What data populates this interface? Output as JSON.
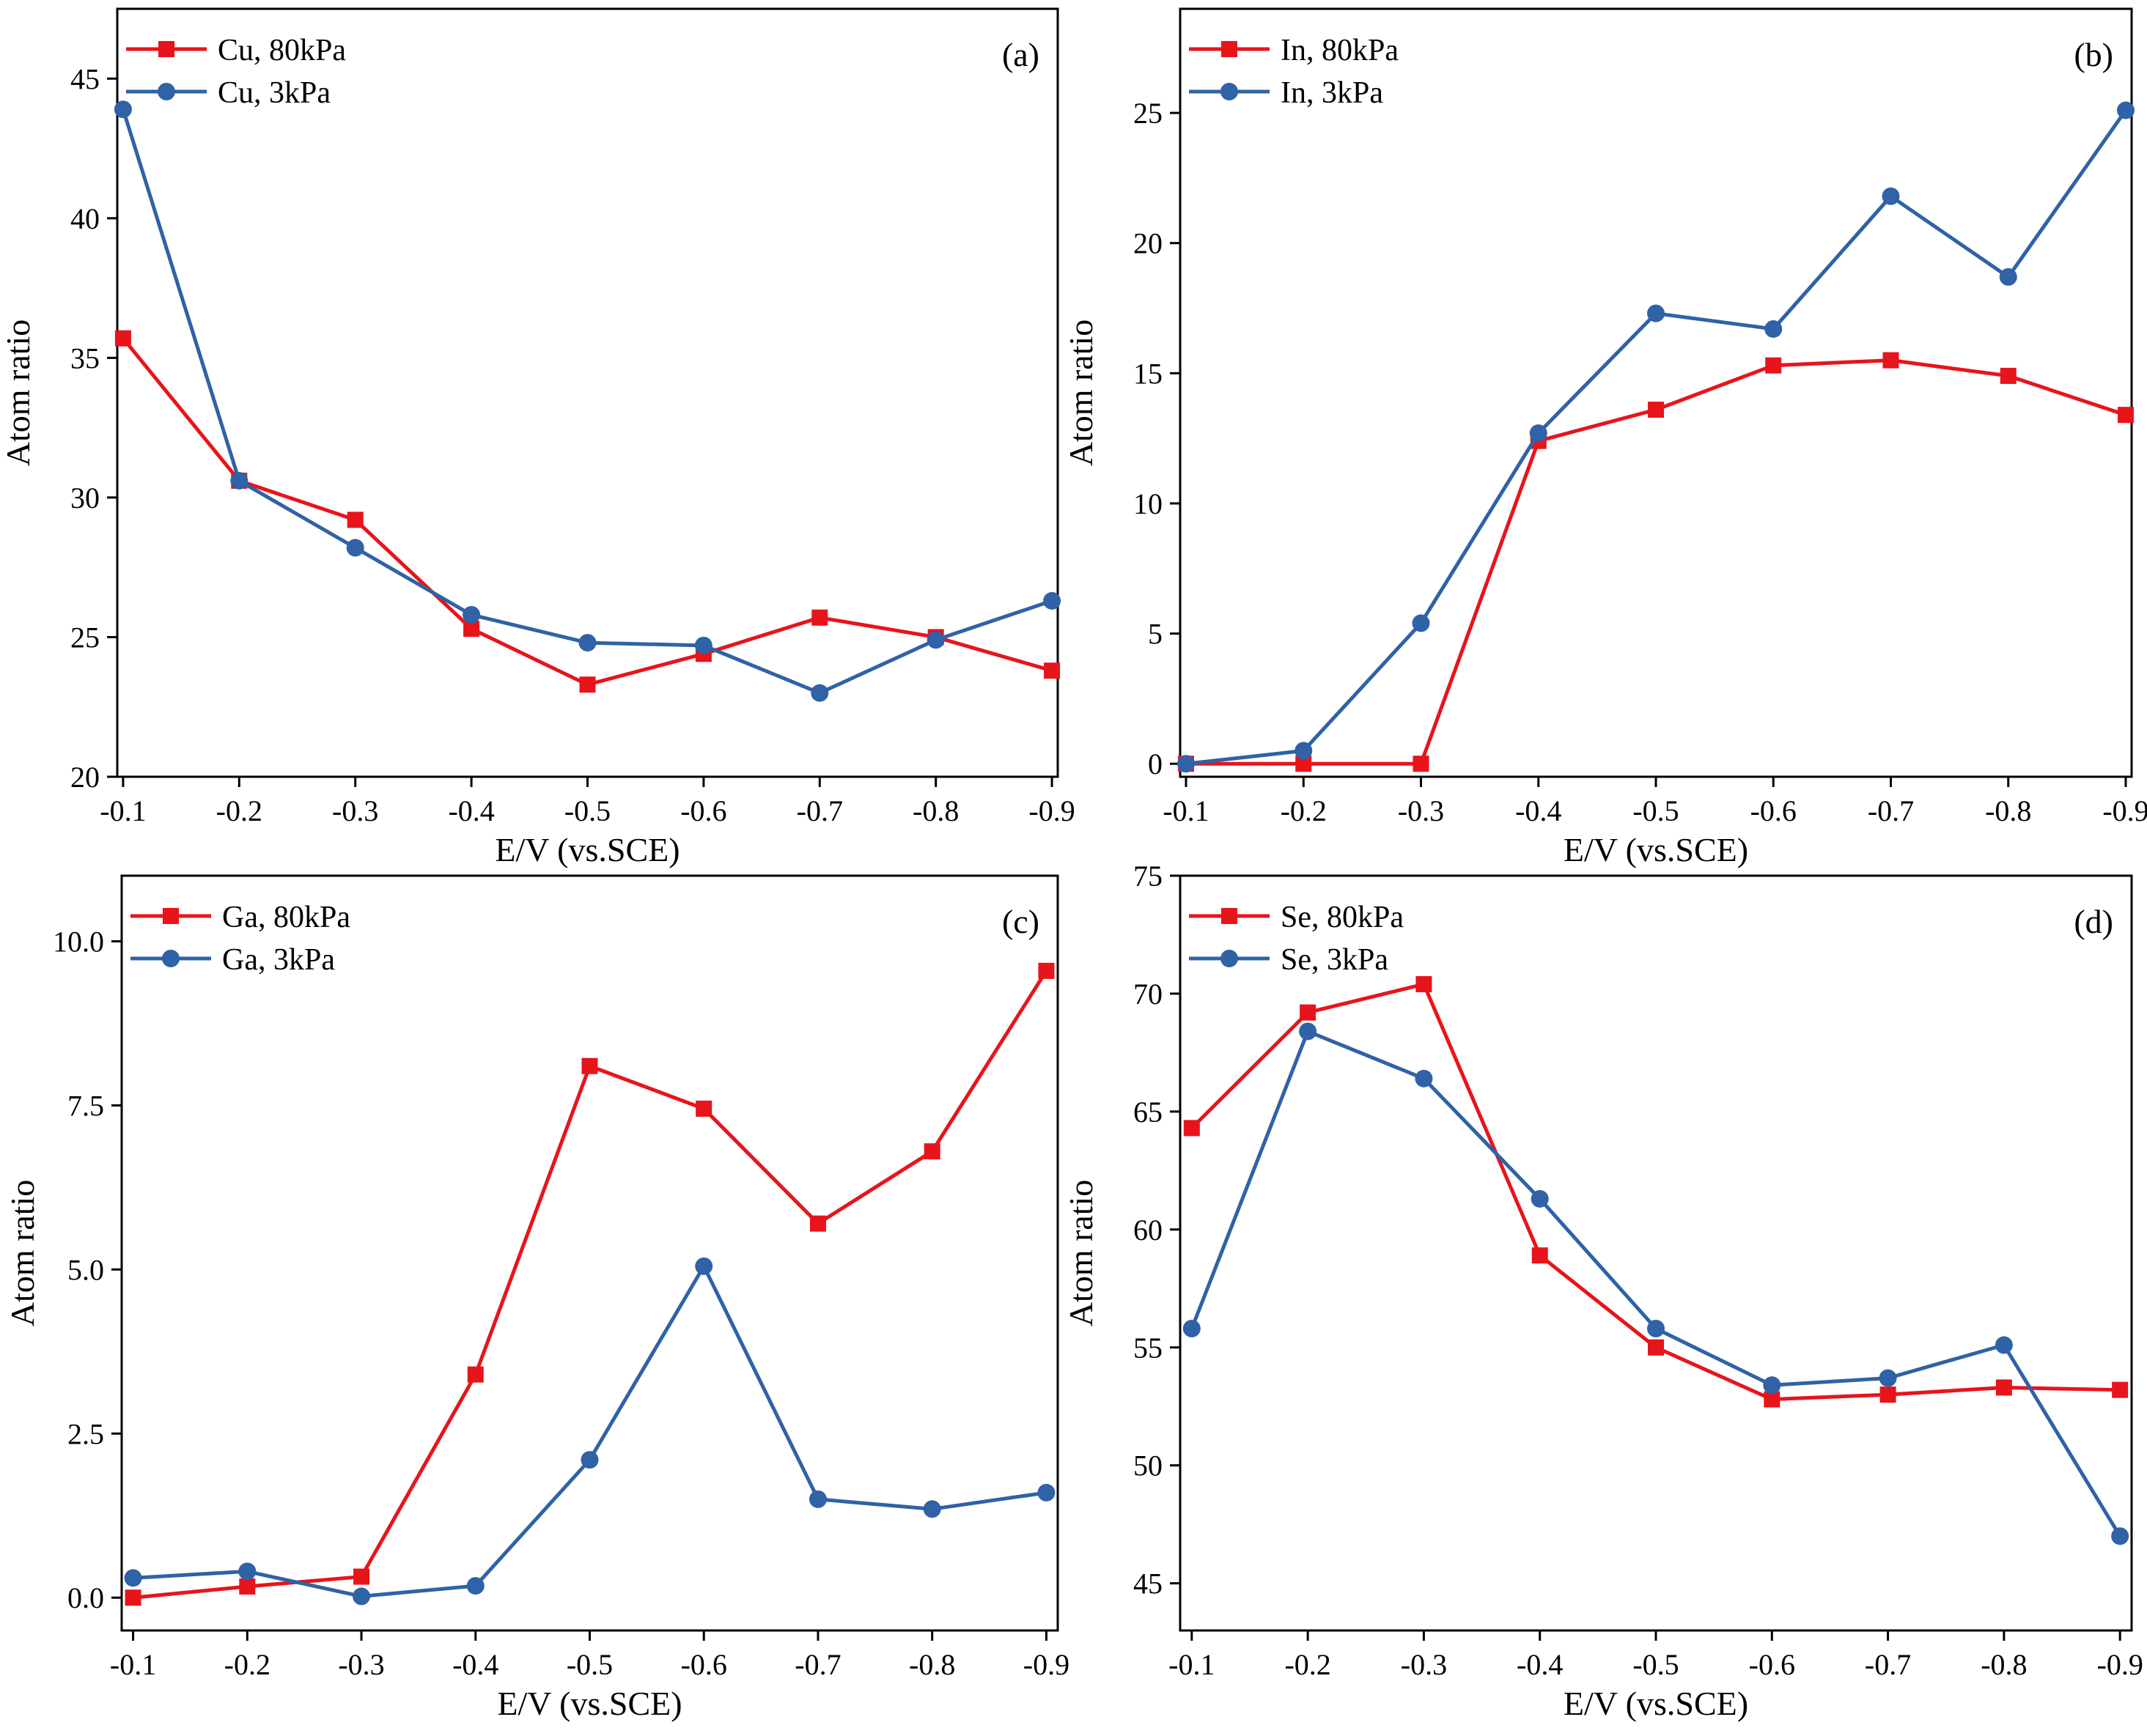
{
  "colors": {
    "series_80kPa": "#e8141b",
    "series_3kPa": "#2f62a6",
    "axis": "#000000"
  },
  "chart_data": [
    {
      "type": "line",
      "panel_label": "(a)",
      "xlabel": "E/V (vs.SCE)",
      "ylabel": "Atom ratio",
      "x": [
        -0.1,
        -0.2,
        -0.3,
        -0.4,
        -0.5,
        -0.6,
        -0.7,
        -0.8,
        -0.9
      ],
      "xticks": [
        "-0.1",
        "-0.2",
        "-0.3",
        "-0.4",
        "-0.5",
        "-0.6",
        "-0.7",
        "-0.8",
        "-0.9"
      ],
      "xlim": [
        -0.095,
        -0.905
      ],
      "ylim": [
        20,
        47.5
      ],
      "yticks": [
        20,
        25,
        30,
        35,
        40,
        45
      ],
      "ytick_labels": [
        "20",
        "25",
        "30",
        "35",
        "40",
        "45"
      ],
      "legend_position": "top-left",
      "series": [
        {
          "name": "Cu, 80kPa",
          "marker": "square",
          "color": "#e8141b",
          "values": [
            35.7,
            30.6,
            29.2,
            25.3,
            23.3,
            24.4,
            25.7,
            25.0,
            23.8
          ]
        },
        {
          "name": "Cu, 3kPa",
          "marker": "circle",
          "color": "#2f62a6",
          "values": [
            43.9,
            30.6,
            28.2,
            25.8,
            24.8,
            24.7,
            23.0,
            24.9,
            26.3
          ]
        }
      ]
    },
    {
      "type": "line",
      "panel_label": "(b)",
      "xlabel": "E/V (vs.SCE)",
      "ylabel": "Atom ratio",
      "x": [
        -0.1,
        -0.2,
        -0.3,
        -0.4,
        -0.5,
        -0.6,
        -0.7,
        -0.8,
        -0.9
      ],
      "xticks": [
        "-0.1",
        "-0.2",
        "-0.3",
        "-0.4",
        "-0.5",
        "-0.6",
        "-0.7",
        "-0.8",
        "-0.9"
      ],
      "xlim": [
        -0.095,
        -0.905
      ],
      "ylim": [
        -0.5,
        29
      ],
      "yticks": [
        0,
        5,
        10,
        15,
        20,
        25
      ],
      "ytick_labels": [
        "0",
        "5",
        "10",
        "15",
        "20",
        "25"
      ],
      "legend_position": "top-left",
      "series": [
        {
          "name": "In, 80kPa",
          "marker": "square",
          "color": "#e8141b",
          "values": [
            0,
            0,
            0,
            12.4,
            13.6,
            15.3,
            15.5,
            14.9,
            13.4
          ]
        },
        {
          "name": "In, 3kPa",
          "marker": "circle",
          "color": "#2f62a6",
          "values": [
            0,
            0.5,
            5.4,
            12.7,
            17.3,
            16.7,
            21.8,
            18.7,
            25.1
          ]
        }
      ]
    },
    {
      "type": "line",
      "panel_label": "(c)",
      "xlabel": "E/V (vs.SCE)",
      "ylabel": "Atom ratio",
      "x": [
        -0.1,
        -0.2,
        -0.3,
        -0.4,
        -0.5,
        -0.6,
        -0.7,
        -0.8,
        -0.9
      ],
      "xticks": [
        "-0.1",
        "-0.2",
        "-0.3",
        "-0.4",
        "-0.5",
        "-0.6",
        "-0.7",
        "-0.8",
        "-0.9"
      ],
      "xlim": [
        -0.09,
        -0.91
      ],
      "ylim": [
        -0.5,
        11
      ],
      "yticks": [
        0,
        2.5,
        5,
        7.5,
        10
      ],
      "ytick_labels": [
        "0.0",
        "2.5",
        "5.0",
        "7.5",
        "10.0"
      ],
      "legend_position": "top-left",
      "series": [
        {
          "name": "Ga, 80kPa",
          "marker": "square",
          "color": "#e8141b",
          "values": [
            0.0,
            0.17,
            0.32,
            3.4,
            8.1,
            7.45,
            5.7,
            6.8,
            9.55
          ]
        },
        {
          "name": "Ga, 3kPa",
          "marker": "circle",
          "color": "#2f62a6",
          "values": [
            0.3,
            0.4,
            0.02,
            0.18,
            2.1,
            5.05,
            1.5,
            1.35,
            1.6
          ]
        }
      ]
    },
    {
      "type": "line",
      "panel_label": "(d)",
      "xlabel": "E/V (vs.SCE)",
      "ylabel": "Atom ratio",
      "x": [
        -0.1,
        -0.2,
        -0.3,
        -0.4,
        -0.5,
        -0.6,
        -0.7,
        -0.8,
        -0.9
      ],
      "xticks": [
        "-0.1",
        "-0.2",
        "-0.3",
        "-0.4",
        "-0.5",
        "-0.6",
        "-0.7",
        "-0.8",
        "-0.9"
      ],
      "xlim": [
        -0.09,
        -0.91
      ],
      "ylim": [
        43,
        75
      ],
      "yticks": [
        45,
        50,
        55,
        60,
        65,
        70,
        75
      ],
      "ytick_labels": [
        "45",
        "50",
        "55",
        "60",
        "65",
        "70",
        "75"
      ],
      "legend_position": "top-left",
      "series": [
        {
          "name": "Se, 80kPa",
          "marker": "square",
          "color": "#e8141b",
          "values": [
            64.3,
            69.2,
            70.4,
            58.9,
            55.0,
            52.8,
            53.0,
            53.3,
            53.2
          ]
        },
        {
          "name": "Se, 3kPa",
          "marker": "circle",
          "color": "#2f62a6",
          "values": [
            55.8,
            68.4,
            66.4,
            61.3,
            55.8,
            53.4,
            53.7,
            55.1,
            47.0
          ]
        }
      ]
    }
  ]
}
